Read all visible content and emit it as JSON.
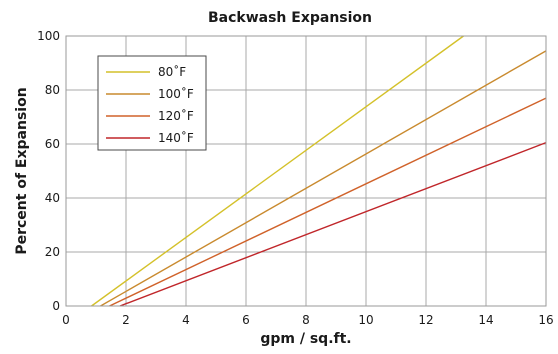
{
  "chart_data": {
    "type": "line",
    "title": "Backwash Expansion",
    "xlabel": "gpm / sq.ft.",
    "ylabel": "Percent of Expansion",
    "xlim": [
      0,
      16
    ],
    "ylim": [
      0,
      100
    ],
    "xticks": [
      0,
      2,
      4,
      6,
      8,
      10,
      12,
      14,
      16
    ],
    "yticks": [
      0,
      20,
      40,
      60,
      80,
      100
    ],
    "grid": true,
    "legend_position": "top-left",
    "series": [
      {
        "name": "80˚F",
        "color": "#d4c12a",
        "x": [
          0.85,
          13.25
        ],
        "y": [
          0,
          100
        ]
      },
      {
        "name": "100˚F",
        "color": "#c98a2e",
        "x": [
          1.15,
          16
        ],
        "y": [
          0,
          94.5
        ]
      },
      {
        "name": "120˚F",
        "color": "#d0622a",
        "x": [
          1.45,
          16
        ],
        "y": [
          0,
          77
        ]
      },
      {
        "name": "140˚F",
        "color": "#c0262a",
        "x": [
          1.8,
          16
        ],
        "y": [
          0,
          60.5
        ]
      }
    ]
  }
}
